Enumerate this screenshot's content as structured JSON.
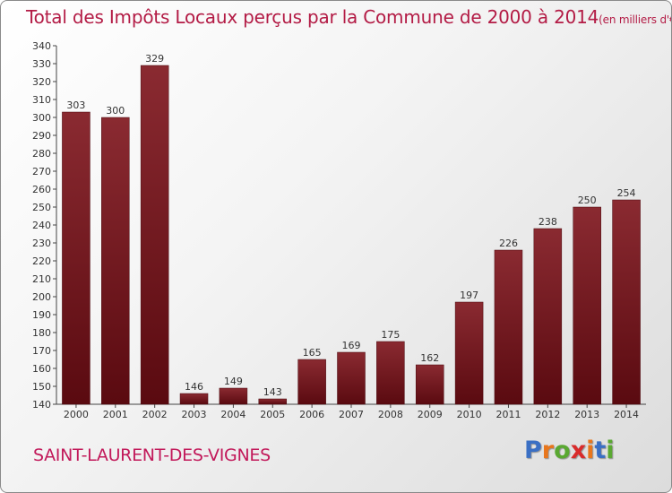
{
  "title": "Total des Impôts Locaux perçus par la Commune de 2000 à 2014",
  "title_unit": "(en milliers d'€)",
  "commune": "SAINT-LAURENT-DES-VIGNES",
  "logo": {
    "letters": [
      "P",
      "r",
      "o",
      "x",
      "i",
      "t",
      "i"
    ],
    "colors": [
      "#3a6fc4",
      "#e8761c",
      "#5aa832",
      "#d92b2b",
      "#e8761c",
      "#3a6fc4",
      "#5aa832"
    ]
  },
  "colors": {
    "bar": "#7d1a22",
    "bar_dark": "#5a0a10",
    "title": "#b31b45",
    "commune": "#c2195a"
  },
  "chart_data": {
    "type": "bar",
    "title": "Total des Impôts Locaux perçus par la Commune de 2000 à 2014",
    "xlabel": "",
    "ylabel": "en milliers d'€",
    "categories": [
      "2000",
      "2001",
      "2002",
      "2003",
      "2004",
      "2005",
      "2006",
      "2007",
      "2008",
      "2009",
      "2010",
      "2011",
      "2012",
      "2013",
      "2014"
    ],
    "values": [
      303,
      300,
      329,
      146,
      149,
      143,
      165,
      169,
      175,
      162,
      197,
      226,
      238,
      250,
      254
    ],
    "ylim": [
      140,
      340
    ],
    "yticks": [
      140,
      150,
      160,
      170,
      180,
      190,
      200,
      210,
      220,
      230,
      240,
      250,
      260,
      270,
      280,
      290,
      300,
      310,
      320,
      330,
      340
    ],
    "grid": false
  }
}
